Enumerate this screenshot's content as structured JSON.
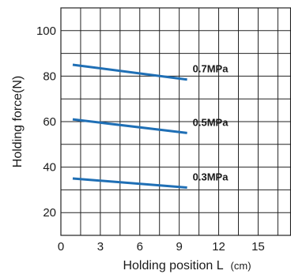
{
  "chart_data": {
    "type": "line",
    "xlabel": "Holding position L",
    "xunit": "(cm)",
    "ylabel": "Holding force(N)",
    "xlim": [
      0,
      17.5
    ],
    "ylim": [
      10,
      110
    ],
    "x_ticks": [
      0,
      3,
      6,
      9,
      12,
      15
    ],
    "y_ticks": [
      20,
      40,
      60,
      80,
      100
    ],
    "grid": true,
    "grid_x_step": 1.5,
    "grid_y_step": 10,
    "series": [
      {
        "name": "0.7MPa",
        "x": [
          0.9,
          9.6
        ],
        "y": [
          85,
          78.5
        ],
        "color": "#1f6fb5"
      },
      {
        "name": "0.5MPa",
        "x": [
          0.9,
          9.6
        ],
        "y": [
          61,
          55
        ],
        "color": "#1f6fb5"
      },
      {
        "name": "0.3MPa",
        "x": [
          0.9,
          9.6
        ],
        "y": [
          35,
          31
        ],
        "color": "#1f6fb5"
      }
    ]
  }
}
